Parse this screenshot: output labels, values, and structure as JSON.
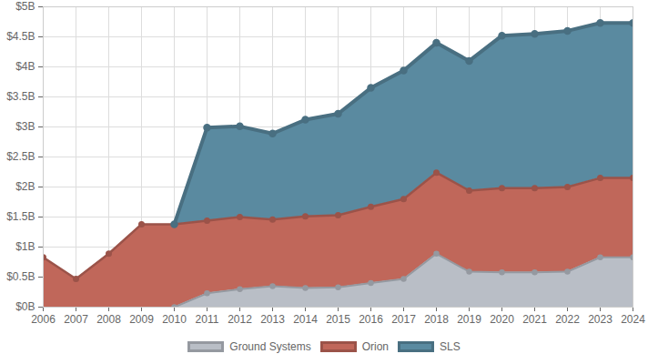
{
  "chart_data": {
    "type": "area",
    "stacked": true,
    "grid": true,
    "legend": "bottom",
    "x": [
      2006,
      2007,
      2008,
      2009,
      2010,
      2011,
      2012,
      2013,
      2014,
      2015,
      2016,
      2017,
      2018,
      2019,
      2020,
      2021,
      2022,
      2023,
      2024
    ],
    "xlim": [
      2006,
      2024
    ],
    "xticks": [
      2006,
      2007,
      2008,
      2009,
      2010,
      2011,
      2012,
      2013,
      2014,
      2015,
      2016,
      2017,
      2018,
      2019,
      2020,
      2021,
      2022,
      2023,
      2024
    ],
    "ylim": [
      0,
      5
    ],
    "yticks": [
      {
        "value": 0,
        "label": "$0B"
      },
      {
        "value": 0.5,
        "label": "$0.5B"
      },
      {
        "value": 1,
        "label": "$1B"
      },
      {
        "value": 1.5,
        "label": "$1.5B"
      },
      {
        "value": 2,
        "label": "$2B"
      },
      {
        "value": 2.5,
        "label": "$2.5B"
      },
      {
        "value": 3,
        "label": "$3B"
      },
      {
        "value": 3.5,
        "label": "$3.5B"
      },
      {
        "value": 4,
        "label": "$4B"
      },
      {
        "value": 4.5,
        "label": "$4.5B"
      },
      {
        "value": 5,
        "label": "$5B"
      }
    ],
    "series": [
      {
        "name": "Ground Systems",
        "color": "#b9bec6",
        "values": [
          null,
          null,
          null,
          null,
          0,
          0.23,
          0.3,
          0.35,
          0.32,
          0.33,
          0.4,
          0.47,
          0.89,
          0.59,
          0.58,
          0.58,
          0.59,
          0.83,
          0.83
        ]
      },
      {
        "name": "Orion",
        "color": "#c0675a",
        "values": [
          0.83,
          0.47,
          0.89,
          1.38,
          1.38,
          1.21,
          1.2,
          1.11,
          1.19,
          1.2,
          1.27,
          1.33,
          1.35,
          1.35,
          1.4,
          1.4,
          1.41,
          1.32,
          1.32
        ]
      },
      {
        "name": "SLS",
        "color": "#5a8aa0",
        "values": [
          null,
          null,
          null,
          null,
          0,
          1.55,
          1.51,
          1.43,
          1.61,
          1.69,
          1.98,
          2.14,
          2.16,
          2.16,
          2.54,
          2.57,
          2.6,
          2.58,
          2.58
        ]
      }
    ]
  }
}
